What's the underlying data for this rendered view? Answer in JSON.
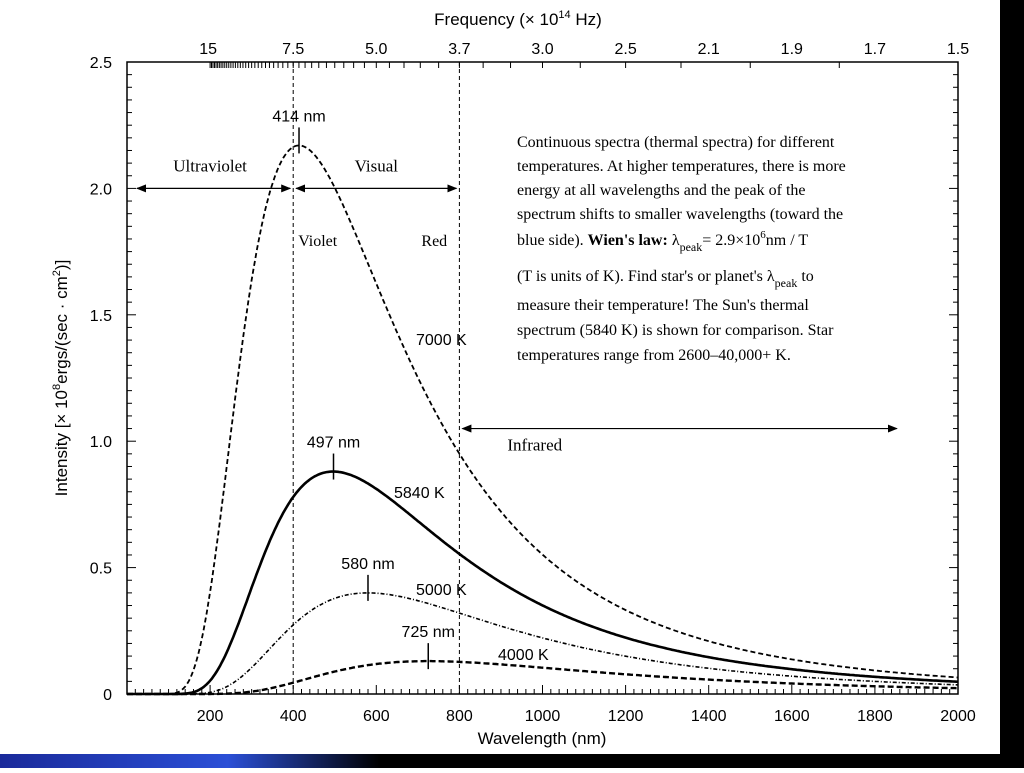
{
  "chart_data": {
    "type": "line",
    "xlabel": "Wavelength (nm)",
    "ylabel": "Intensity [× 10",
    "ylabel_sup": "8",
    "ylabel_tail": "ergs/(sec · cm",
    "ylabel_sup2": "2",
    "ylabel_end": ")]",
    "top_axis_label": "Frequency (× 10",
    "top_axis_sup": "14",
    "top_axis_unit": " Hz)",
    "xlim": [
      0,
      2000
    ],
    "ylim": [
      0,
      2.5
    ],
    "x_ticks": [
      "200",
      "400",
      "600",
      "800",
      "1000",
      "1200",
      "1400",
      "1600",
      "1800",
      "2000"
    ],
    "y_ticks": [
      "0",
      "0.5",
      "1.0",
      "1.5",
      "2.0",
      "2.5"
    ],
    "top_ticks": [
      {
        "label": "15",
        "wavelength": 200
      },
      {
        "label": "7.5",
        "wavelength": 400
      },
      {
        "label": "5.0",
        "wavelength": 600
      },
      {
        "label": "3.7",
        "wavelength": 800
      },
      {
        "label": "3.0",
        "wavelength": 1000
      },
      {
        "label": "2.5",
        "wavelength": 1200
      },
      {
        "label": "2.1",
        "wavelength": 1400
      },
      {
        "label": "1.9",
        "wavelength": 1600
      },
      {
        "label": "1.7",
        "wavelength": 1800
      },
      {
        "label": "1.5",
        "wavelength": 2000
      }
    ],
    "series": [
      {
        "name": "7000 K",
        "temperature": 7000,
        "peak_label": "414 nm",
        "peak_wavelength": 414,
        "peak_intensity": 2.17,
        "style": "dashed"
      },
      {
        "name": "5840 K",
        "temperature": 5840,
        "peak_label": "497 nm",
        "peak_wavelength": 497,
        "peak_intensity": 0.88,
        "style": "solid-thick"
      },
      {
        "name": "5000 K",
        "temperature": 5000,
        "peak_label": "580 nm",
        "peak_wavelength": 580,
        "peak_intensity": 0.4,
        "style": "dashed-dotted"
      },
      {
        "name": "4000 K",
        "temperature": 4000,
        "peak_label": "725 nm",
        "peak_wavelength": 725,
        "peak_intensity": 0.13,
        "style": "dashed-bold"
      }
    ],
    "regions": [
      {
        "label": "Ultraviolet",
        "from": 0,
        "to": 400,
        "y": 2.0
      },
      {
        "label": "Visual",
        "from": 400,
        "to": 800,
        "y": 2.0
      },
      {
        "label": "Infrared",
        "from": 800,
        "to": 1860,
        "y": 1.05
      }
    ],
    "vlines": [
      {
        "x": 400,
        "label": "Violet"
      },
      {
        "x": 800,
        "label": "Red"
      }
    ],
    "annotation_lines": [
      "Continuous spectra (thermal spectra) for different",
      "temperatures. At higher temperatures, there is more",
      "energy at all wavelengths and the peak of the",
      "spectrum shifts to smaller wavelengths (toward the"
    ],
    "annotation_wien_prefix": "blue side). ",
    "annotation_wien_bold": "Wien's law: ",
    "annotation_wien_lambda": "λ",
    "annotation_wien_peak_sub": "peak",
    "annotation_wien_eq": "= 2.9×10",
    "annotation_wien_exp": "6",
    "annotation_wien_tail": "nm / T",
    "annotation_line6_a": "(T is units of K). Find star's or planet's ",
    "annotation_line6_lambda": "λ",
    "annotation_line6_sub": "peak",
    "annotation_line6_b": " to",
    "annotation_lines_end": [
      "measure their temperature! The Sun's thermal",
      "spectrum (5840 K) is shown for comparison. Star",
      "temperatures range from 2600–40,000+ K."
    ]
  }
}
